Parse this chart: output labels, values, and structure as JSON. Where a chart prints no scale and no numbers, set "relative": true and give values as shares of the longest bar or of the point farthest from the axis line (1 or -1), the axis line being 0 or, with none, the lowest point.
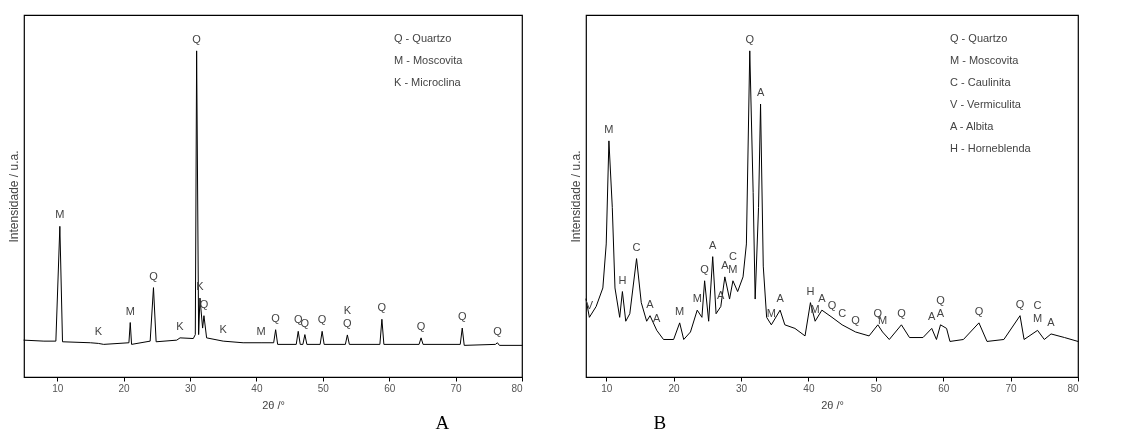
{
  "chart_data": [
    {
      "type": "line",
      "relative": true,
      "xlabel": "2θ /°",
      "ylabel": "Intensidade / u.a.",
      "xlim": [
        5,
        80
      ],
      "xticks": [
        10,
        20,
        30,
        40,
        50,
        60,
        70,
        80
      ],
      "tick_labels": "x",
      "grid": false,
      "x": [
        5,
        8,
        9.8,
        10.4,
        10.8,
        15,
        16.2,
        17,
        20.8,
        21,
        21.2,
        24,
        24.5,
        24.9,
        28,
        28.5,
        30.5,
        30.8,
        31.0,
        31.3,
        31.5,
        31.9,
        32.1,
        32.5,
        35,
        38,
        40.7,
        42.6,
        42.9,
        43.2,
        46.0,
        46.3,
        46.6,
        47.0,
        47.3,
        47.6,
        49.6,
        49.9,
        50.2,
        53.4,
        53.7,
        54.0,
        58.6,
        58.9,
        59.2,
        64.5,
        64.8,
        65.1,
        70.7,
        71.0,
        71.3,
        76.0,
        76.3,
        76.6,
        80
      ],
      "series": [
        {
          "color": "#000000",
          "values": [
            0.113,
            0.11,
            0.11,
            0.462,
            0.108,
            0.105,
            0.103,
            0.1,
            0.105,
            0.167,
            0.1,
            0.11,
            0.274,
            0.108,
            0.113,
            0.12,
            0.118,
            0.13,
            1,
            0.13,
            0.242,
            0.15,
            0.188,
            0.12,
            0.11,
            0.105,
            0.105,
            0.105,
            0.145,
            0.1,
            0.1,
            0.14,
            0.1,
            0.1,
            0.13,
            0.1,
            0.1,
            0.14,
            0.1,
            0.1,
            0.129,
            0.1,
            0.1,
            0.177,
            0.1,
            0.1,
            0.12,
            0.1,
            0.1,
            0.15,
            0.097,
            0.1,
            0.105,
            0.097,
            0.097
          ]
        }
      ],
      "annotations": [
        {
          "text": "M",
          "x": 10.4,
          "y": 0.462
        },
        {
          "text": "K",
          "x": 16.2,
          "y": 0.103
        },
        {
          "text": "M",
          "x": 21,
          "y": 0.167
        },
        {
          "text": "Q",
          "x": 24.5,
          "y": 0.274
        },
        {
          "text": "K",
          "x": 28.5,
          "y": 0.12
        },
        {
          "text": "Q",
          "x": 31.0,
          "y": 1
        },
        {
          "text": "K",
          "x": 31.5,
          "y": 0.242
        },
        {
          "text": "Q",
          "x": 32.1,
          "y": 0.188
        },
        {
          "text": "K",
          "x": 35,
          "y": 0.11
        },
        {
          "text": "M",
          "x": 40.7,
          "y": 0.105
        },
        {
          "text": "Q",
          "x": 42.9,
          "y": 0.145
        },
        {
          "text": "Q",
          "x": 46.3,
          "y": 0.14
        },
        {
          "text": "Q",
          "x": 47.3,
          "y": 0.13
        },
        {
          "text": "Q",
          "x": 49.9,
          "y": 0.14
        },
        {
          "text": "Q",
          "x": 53.7,
          "y": 0.129
        },
        {
          "text": "K",
          "x": 53.7,
          "y": 0.129
        },
        {
          "text": "Q",
          "x": 58.9,
          "y": 0.177
        },
        {
          "text": "Q",
          "x": 64.8,
          "y": 0.12
        },
        {
          "text": "Q",
          "x": 71.0,
          "y": 0.15
        },
        {
          "text": "Q",
          "x": 76.3,
          "y": 0.105
        },
        "Q - Quartzo",
        "M - Moscovita",
        "K - Microclina",
        "A"
      ]
    },
    {
      "type": "line",
      "relative": true,
      "xlabel": "2θ /°",
      "ylabel": "Intensidade / u.a.",
      "xlim": [
        7,
        80
      ],
      "xticks": [
        10,
        20,
        30,
        40,
        50,
        60,
        70,
        80
      ],
      "tick_labels": "x",
      "grid": false,
      "x": [
        7.0,
        7.5,
        8.5,
        9.5,
        10.0,
        10.4,
        10.9,
        11.3,
        12,
        12.4,
        12.9,
        13.5,
        14.5,
        15.2,
        16,
        16.5,
        17.5,
        18.5,
        20,
        20.9,
        21.5,
        22.5,
        23.5,
        24.2,
        24.6,
        25.2,
        25.8,
        26.3,
        27,
        27.6,
        28.3,
        28.8,
        29.5,
        30.3,
        30.8,
        31.3,
        31.8,
        32.1,
        32.6,
        32.9,
        33.3,
        33.8,
        34.5,
        35.8,
        36.5,
        38,
        39.5,
        40.3,
        41,
        42,
        43.5,
        45,
        47,
        49,
        50.3,
        51,
        52,
        53.8,
        55,
        57,
        58.3,
        59,
        59.6,
        60.5,
        61,
        63,
        65.3,
        66.5,
        69,
        71.4,
        72,
        74,
        75,
        76,
        78,
        80
      ],
      "series": [
        {
          "color": "#000000",
          "values": [
            0.239,
            0.183,
            0.216,
            0.273,
            0.408,
            0.724,
            0.52,
            0.273,
            0.183,
            0.262,
            0.171,
            0.194,
            0.363,
            0.228,
            0.171,
            0.188,
            0.143,
            0.115,
            0.115,
            0.166,
            0.115,
            0.138,
            0.205,
            0.183,
            0.295,
            0.171,
            0.369,
            0.194,
            0.216,
            0.307,
            0.239,
            0.295,
            0.262,
            0.307,
            0.408,
            1,
            0.566,
            0.239,
            0.52,
            0.837,
            0.34,
            0.183,
            0.16,
            0.205,
            0.16,
            0.149,
            0.126,
            0.228,
            0.171,
            0.205,
            0.183,
            0.16,
            0.138,
            0.126,
            0.16,
            0.138,
            0.115,
            0.16,
            0.121,
            0.121,
            0.149,
            0.115,
            0.16,
            0.149,
            0.109,
            0.115,
            0.166,
            0.109,
            0.115,
            0.188,
            0.115,
            0.143,
            0.115,
            0.132,
            0.121,
            0.109
          ]
        }
      ],
      "annotations": [
        {
          "text": "V",
          "x": 7.5,
          "y": 0.183
        },
        {
          "text": "M",
          "x": 10.4,
          "y": 0.724
        },
        {
          "text": "H",
          "x": 12.4,
          "y": 0.262
        },
        {
          "text": "C",
          "x": 14.5,
          "y": 0.363
        },
        {
          "text": "A",
          "x": 16.5,
          "y": 0.188
        },
        {
          "text": "A",
          "x": 17.5,
          "y": 0.143
        },
        {
          "text": "M",
          "x": 20.9,
          "y": 0.166
        },
        {
          "text": "M",
          "x": 23.5,
          "y": 0.205
        },
        {
          "text": "Q",
          "x": 24.6,
          "y": 0.295
        },
        {
          "text": "A",
          "x": 25.8,
          "y": 0.369
        },
        {
          "text": "A",
          "x": 27,
          "y": 0.216
        },
        {
          "text": "A",
          "x": 27.6,
          "y": 0.307
        },
        {
          "text": "M",
          "x": 28.8,
          "y": 0.295
        },
        {
          "text": "C",
          "x": 28.8,
          "y": 0.295
        },
        {
          "text": "Q",
          "x": 31.3,
          "y": 1
        },
        {
          "text": "A",
          "x": 32.9,
          "y": 0.837
        },
        {
          "text": "M",
          "x": 34.5,
          "y": 0.16
        },
        {
          "text": "A",
          "x": 35.8,
          "y": 0.205
        },
        {
          "text": "H",
          "x": 40.3,
          "y": 0.228
        },
        {
          "text": "A",
          "x": 42,
          "y": 0.205
        },
        {
          "text": "M",
          "x": 41,
          "y": 0.171
        },
        {
          "text": "Q",
          "x": 43.5,
          "y": 0.183
        },
        {
          "text": "C",
          "x": 45,
          "y": 0.16
        },
        {
          "text": "Q",
          "x": 47,
          "y": 0.138
        },
        {
          "text": "Q",
          "x": 50.3,
          "y": 0.16
        },
        {
          "text": "M",
          "x": 51,
          "y": 0.138
        },
        {
          "text": "Q",
          "x": 53.8,
          "y": 0.16
        },
        {
          "text": "A",
          "x": 58.3,
          "y": 0.149
        },
        {
          "text": "A",
          "x": 59.6,
          "y": 0.16
        },
        {
          "text": "Q",
          "x": 59.6,
          "y": 0.16
        },
        {
          "text": "Q",
          "x": 65.3,
          "y": 0.166
        },
        {
          "text": "Q",
          "x": 71.4,
          "y": 0.188
        },
        {
          "text": "M",
          "x": 74,
          "y": 0.143
        },
        {
          "text": "C",
          "x": 74,
          "y": 0.143
        },
        {
          "text": "A",
          "x": 76,
          "y": 0.132
        },
        "Q - Quartzo",
        "M - Moscovita",
        "C - Caulinita",
        "V - Vermiculita",
        "A - Albita",
        "H - Horneblenda",
        "B"
      ]
    }
  ]
}
